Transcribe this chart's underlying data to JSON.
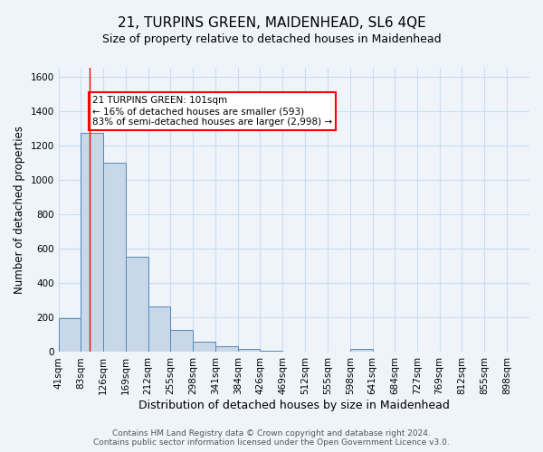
{
  "title": "21, TURPINS GREEN, MAIDENHEAD, SL6 4QE",
  "subtitle": "Size of property relative to detached houses in Maidenhead",
  "xlabel": "Distribution of detached houses by size in Maidenhead",
  "ylabel": "Number of detached properties",
  "footer_line1": "Contains HM Land Registry data © Crown copyright and database right 2024.",
  "footer_line2": "Contains public sector information licensed under the Open Government Licence v3.0.",
  "bin_labels": [
    "41sqm",
    "83sqm",
    "126sqm",
    "169sqm",
    "212sqm",
    "255sqm",
    "298sqm",
    "341sqm",
    "384sqm",
    "426sqm",
    "469sqm",
    "512sqm",
    "555sqm",
    "598sqm",
    "641sqm",
    "684sqm",
    "727sqm",
    "769sqm",
    "812sqm",
    "855sqm",
    "898sqm"
  ],
  "bar_values": [
    197,
    1270,
    1100,
    555,
    265,
    130,
    60,
    32,
    18,
    10,
    0,
    0,
    0,
    20,
    0,
    0,
    0,
    0,
    0,
    0,
    5
  ],
  "bar_color": "#c8d8e8",
  "bar_edgecolor": "#5588bb",
  "vline_x_sqm": 101,
  "bin_edges_sqm": [
    41,
    83,
    126,
    169,
    212,
    255,
    298,
    341,
    384,
    426,
    469,
    512,
    555,
    598,
    641,
    684,
    727,
    769,
    812,
    855,
    898,
    941
  ],
  "annotation_line1": "21 TURPINS GREEN: 101sqm",
  "annotation_line2": "← 16% of detached houses are smaller (593)",
  "annotation_line3": "83% of semi-detached houses are larger (2,998) →",
  "annotation_box_facecolor": "white",
  "annotation_box_edgecolor": "red",
  "ylim": [
    0,
    1650
  ],
  "yticks": [
    0,
    200,
    400,
    600,
    800,
    1000,
    1200,
    1400,
    1600
  ],
  "grid_color": "#ccddee",
  "bg_color": "#eef4fa",
  "vline_color": "red",
  "title_fontsize": 11,
  "subtitle_fontsize": 9,
  "xlabel_fontsize": 9,
  "ylabel_fontsize": 8.5,
  "tick_fontsize": 7.5,
  "annotation_fontsize": 7.5,
  "footer_fontsize": 6.5
}
